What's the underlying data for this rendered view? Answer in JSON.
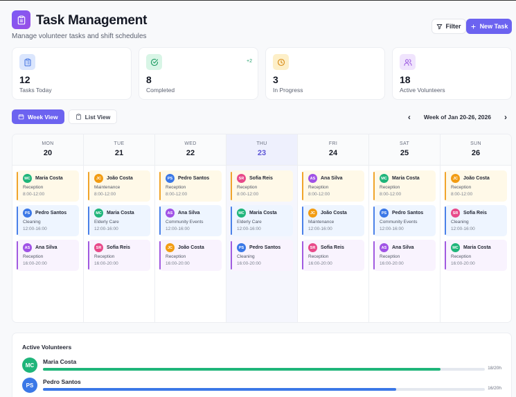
{
  "header": {
    "title": "Task Management",
    "subtitle": "Manage volunteer tasks and shift schedules",
    "app_icon": "clipboard-icon",
    "filter_label": "Filter",
    "new_task_label": "New Task"
  },
  "stats": [
    {
      "value": "12",
      "label": "Tasks Today",
      "icon": "clipboard-list-icon",
      "icon_bg": "#dbe6fd",
      "icon_color": "#3d6fe0",
      "delta": ""
    },
    {
      "value": "8",
      "label": "Completed",
      "icon": "check-circle-icon",
      "icon_bg": "#d8f5e6",
      "icon_color": "#1f9d63",
      "delta": "+2"
    },
    {
      "value": "3",
      "label": "In Progress",
      "icon": "clock-icon",
      "icon_bg": "#fdefc8",
      "icon_color": "#d88a16",
      "delta": ""
    },
    {
      "value": "18",
      "label": "Active Volunteers",
      "icon": "users-icon",
      "icon_bg": "#f0e4fd",
      "icon_color": "#9a55e0",
      "delta": ""
    }
  ],
  "views": {
    "week_label": "Week View",
    "list_label": "List View",
    "active": "week"
  },
  "week_nav": {
    "label": "Week of Jan 20-26, 2026",
    "prev": "‹",
    "next": "›"
  },
  "colors": {
    "accent": "#6c63f0",
    "MC": "#1fb57a",
    "PS": "#3b78e7",
    "AS": "#a052e6",
    "JC": "#f29c12",
    "SR": "#e84a8a"
  },
  "calendar": {
    "days": [
      {
        "name": "MON",
        "num": "20",
        "today": false,
        "shifts": [
          {
            "initials": "MC",
            "name": "Maria Costa",
            "role": "Reception",
            "time": "8:00-12:00"
          },
          {
            "initials": "PS",
            "name": "Pedro Santos",
            "role": "Cleaning",
            "time": "12:00-16:00"
          },
          {
            "initials": "AS",
            "name": "Ana Silva",
            "role": "Reception",
            "time": "16:00-20:00"
          }
        ]
      },
      {
        "name": "TUE",
        "num": "21",
        "today": false,
        "shifts": [
          {
            "initials": "JC",
            "name": "João Costa",
            "role": "Maintenance",
            "time": "8:00-12:00"
          },
          {
            "initials": "MC",
            "name": "Maria Costa",
            "role": "Elderly Care",
            "time": "12:00-16:00"
          },
          {
            "initials": "SR",
            "name": "Sofia Reis",
            "role": "Reception",
            "time": "16:00-20:00"
          }
        ]
      },
      {
        "name": "WED",
        "num": "22",
        "today": false,
        "shifts": [
          {
            "initials": "PS",
            "name": "Pedro Santos",
            "role": "Reception",
            "time": "8:00-12:00"
          },
          {
            "initials": "AS",
            "name": "Ana Silva",
            "role": "Community Events",
            "time": "12:00-16:00"
          },
          {
            "initials": "JC",
            "name": "João Costa",
            "role": "Reception",
            "time": "16:00-20:00"
          }
        ]
      },
      {
        "name": "THU",
        "num": "23",
        "today": true,
        "shifts": [
          {
            "initials": "SR",
            "name": "Sofia Reis",
            "role": "Reception",
            "time": "8:00-12:00"
          },
          {
            "initials": "MC",
            "name": "Maria Costa",
            "role": "Elderly Care",
            "time": "12:00-16:00"
          },
          {
            "initials": "PS",
            "name": "Pedro Santos",
            "role": "Cleaning",
            "time": "16:00-20:00"
          }
        ]
      },
      {
        "name": "FRI",
        "num": "24",
        "today": false,
        "shifts": [
          {
            "initials": "AS",
            "name": "Ana Silva",
            "role": "Reception",
            "time": "8:00-12:00"
          },
          {
            "initials": "JC",
            "name": "João Costa",
            "role": "Maintenance",
            "time": "12:00-16:00"
          },
          {
            "initials": "SR",
            "name": "Sofia Reis",
            "role": "Reception",
            "time": "16:00-20:00"
          }
        ]
      },
      {
        "name": "SAT",
        "num": "25",
        "today": false,
        "shifts": [
          {
            "initials": "MC",
            "name": "Maria Costa",
            "role": "Reception",
            "time": "8:00-12:00"
          },
          {
            "initials": "PS",
            "name": "Pedro Santos",
            "role": "Community Events",
            "time": "12:00-16:00"
          },
          {
            "initials": "AS",
            "name": "Ana Silva",
            "role": "Reception",
            "time": "16:00-20:00"
          }
        ]
      },
      {
        "name": "SUN",
        "num": "26",
        "today": false,
        "shifts": [
          {
            "initials": "JC",
            "name": "João Costa",
            "role": "Reception",
            "time": "8:00-12:00"
          },
          {
            "initials": "SR",
            "name": "Sofia Reis",
            "role": "Cleaning",
            "time": "12:00-16:00"
          },
          {
            "initials": "MC",
            "name": "Maria Costa",
            "role": "Reception",
            "time": "16:00-20:00"
          }
        ]
      }
    ]
  },
  "volunteers": {
    "title": "Active Volunteers",
    "items": [
      {
        "initials": "MC",
        "name": "Maria Costa",
        "hours": "18/20h",
        "pct": 90,
        "color": "#1fb57a"
      },
      {
        "initials": "PS",
        "name": "Pedro Santos",
        "hours": "16/20h",
        "pct": 80,
        "color": "#3b78e7"
      }
    ]
  }
}
